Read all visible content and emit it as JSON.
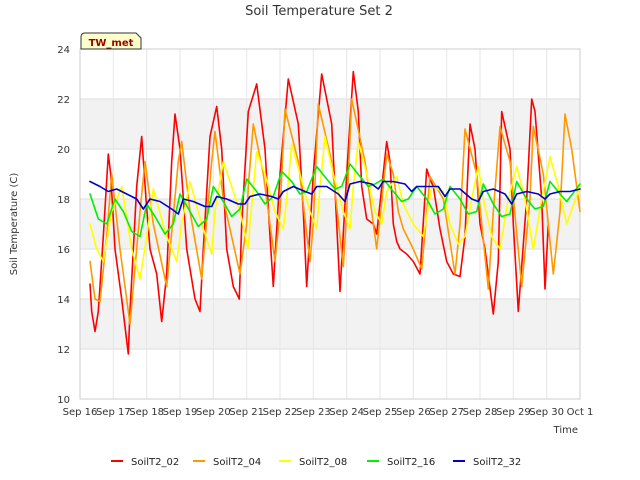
{
  "chart_data": {
    "type": "line",
    "title": "Soil Temperature Set 2",
    "xlabel": "Time",
    "ylabel": "Soil Temperature (C)",
    "badge": "TW_met",
    "ylim": [
      10,
      24
    ],
    "xlim": [
      0,
      15
    ],
    "yticks": [
      "10",
      "12",
      "14",
      "16",
      "18",
      "20",
      "22",
      "24"
    ],
    "xticks": [
      "Sep 16",
      "Sep 17",
      "Sep 18",
      "Sep 19",
      "Sep 20",
      "Sep 21",
      "Sep 22",
      "Sep 23",
      "Sep 24",
      "Sep 25",
      "Sep 26",
      "Sep 27",
      "Sep 28",
      "Sep 29",
      "Sep 30",
      "Oct 1"
    ],
    "grid": true,
    "legend_position": "bottom",
    "series": [
      {
        "name": "SoilT2_02",
        "color": "#ff0000",
        "x": [
          0.3,
          0.35,
          0.45,
          0.55,
          0.7,
          0.85,
          0.92,
          1.05,
          1.25,
          1.45,
          1.5,
          1.7,
          1.85,
          1.98,
          2.1,
          2.3,
          2.45,
          2.6,
          2.75,
          2.85,
          3.0,
          3.2,
          3.45,
          3.6,
          3.7,
          3.9,
          4.1,
          4.25,
          4.4,
          4.6,
          4.78,
          4.85,
          5.05,
          5.3,
          5.55,
          5.7,
          5.8,
          6.0,
          6.25,
          6.55,
          6.7,
          6.8,
          7.0,
          7.25,
          7.55,
          7.7,
          7.8,
          8.0,
          8.2,
          8.35,
          8.45,
          8.6,
          8.8,
          8.9,
          9.2,
          9.3,
          9.4,
          9.5,
          9.6,
          9.8,
          10.0,
          10.2,
          10.4,
          10.5,
          10.6,
          10.8,
          11.0,
          11.2,
          11.4,
          11.55,
          11.7,
          11.85,
          12.0,
          12.15,
          12.4,
          12.55,
          12.65,
          12.9,
          13.0,
          13.15,
          13.4,
          13.55,
          13.65,
          13.85,
          13.95,
          14.05
        ],
        "y": [
          14.6,
          13.5,
          12.7,
          13.5,
          16.5,
          19.8,
          19.0,
          16.0,
          14.0,
          11.8,
          13.5,
          18.5,
          20.5,
          18.0,
          16.0,
          15.0,
          13.1,
          15.0,
          19.5,
          21.4,
          20.0,
          16.0,
          14.0,
          13.5,
          16.0,
          20.5,
          21.7,
          20.0,
          16.0,
          14.5,
          14.0,
          17.0,
          21.5,
          22.6,
          20.0,
          16.5,
          14.5,
          19.0,
          22.8,
          21.0,
          17.5,
          14.5,
          19.0,
          23.0,
          21.0,
          17.0,
          14.3,
          19.0,
          23.1,
          21.5,
          18.5,
          17.2,
          17.0,
          16.6,
          20.3,
          19.5,
          17.0,
          16.3,
          16.0,
          15.8,
          15.5,
          15.0,
          19.2,
          18.8,
          18.5,
          16.8,
          15.5,
          15.0,
          14.9,
          16.5,
          21.0,
          20.0,
          17.0,
          16.0,
          13.4,
          15.5,
          21.5,
          20.0,
          17.0,
          13.5,
          18.0,
          22.0,
          21.5,
          18.0,
          14.4,
          17.0
        ]
      },
      {
        "name": "SoilT2_04",
        "color": "#ff9900",
        "x": [
          0.3,
          0.45,
          0.6,
          0.8,
          0.95,
          1.2,
          1.5,
          1.8,
          1.95,
          2.2,
          2.6,
          2.95,
          3.05,
          3.3,
          3.65,
          3.95,
          4.05,
          4.3,
          4.8,
          5.0,
          5.05,
          5.2,
          5.5,
          5.85,
          6.0,
          6.15,
          6.55,
          6.9,
          7.0,
          7.15,
          7.55,
          7.9,
          8.0,
          8.15,
          8.55,
          8.9,
          9.2,
          9.4,
          9.55,
          9.7,
          10.0,
          10.25,
          10.5,
          10.9,
          11.25,
          11.4,
          11.55,
          11.9,
          12.25,
          12.4,
          12.6,
          12.9,
          13.25,
          13.5,
          13.6,
          13.9,
          14.2,
          14.4,
          14.55,
          14.75,
          15.0
        ],
        "y": [
          15.5,
          14.0,
          13.9,
          16.5,
          19.0,
          16.0,
          13.0,
          17.5,
          19.5,
          17.0,
          14.5,
          19.5,
          20.3,
          17.5,
          14.8,
          19.5,
          20.7,
          18.0,
          15.0,
          17.0,
          18.5,
          21.0,
          19.0,
          15.5,
          17.5,
          21.6,
          19.5,
          15.5,
          17.0,
          21.8,
          19.5,
          15.3,
          17.5,
          22.0,
          19.5,
          16.0,
          19.8,
          19.0,
          17.5,
          16.8,
          16.0,
          15.2,
          18.9,
          18.0,
          15.0,
          17.0,
          20.8,
          19.0,
          14.4,
          17.5,
          20.9,
          19.5,
          14.5,
          18.0,
          20.9,
          19.0,
          15.0,
          17.5,
          21.4,
          20.0,
          17.5
        ]
      },
      {
        "name": "SoilT2_08",
        "color": "#ffff00",
        "x": [
          0.3,
          0.5,
          0.7,
          0.95,
          1.25,
          1.55,
          1.8,
          2.0,
          2.2,
          2.6,
          2.9,
          3.05,
          3.3,
          3.65,
          3.95,
          4.05,
          4.3,
          4.8,
          5.05,
          5.1,
          5.3,
          5.55,
          5.85,
          6.1,
          6.2,
          6.35,
          6.6,
          6.9,
          7.1,
          7.2,
          7.35,
          7.6,
          7.9,
          8.1,
          8.2,
          8.35,
          8.6,
          8.85,
          9.05,
          9.2,
          9.5,
          9.7,
          10.0,
          10.3,
          10.55,
          10.9,
          11.1,
          11.35,
          11.55,
          11.75,
          11.95,
          12.1,
          12.35,
          12.6,
          12.85,
          13.1,
          13.35,
          13.6,
          13.85,
          14.1,
          14.35,
          14.6,
          15.0
        ],
        "y": [
          17.0,
          16.0,
          15.5,
          17.5,
          18.5,
          16.0,
          14.8,
          16.5,
          18.4,
          16.5,
          15.5,
          17.0,
          18.7,
          17.0,
          15.8,
          17.5,
          19.5,
          17.5,
          16.0,
          17.0,
          19.9,
          19.0,
          17.5,
          16.8,
          18.0,
          20.2,
          19.0,
          17.5,
          16.8,
          18.5,
          20.5,
          19.0,
          17.5,
          16.8,
          18.5,
          20.3,
          19.0,
          17.5,
          17.0,
          18.3,
          18.9,
          17.8,
          17.0,
          16.5,
          18.5,
          18.3,
          17.0,
          16.2,
          16.5,
          18.0,
          19.3,
          18.0,
          16.5,
          16.0,
          18.0,
          19.3,
          18.0,
          16.0,
          18.0,
          19.7,
          18.5,
          17.0,
          18.5
        ]
      },
      {
        "name": "SoilT2_16",
        "color": "#00ee00",
        "x": [
          0.3,
          0.55,
          0.8,
          1.05,
          1.3,
          1.55,
          1.8,
          2.0,
          2.25,
          2.55,
          2.8,
          3.0,
          3.3,
          3.55,
          3.8,
          4.0,
          4.3,
          4.55,
          4.8,
          5.0,
          5.3,
          5.55,
          5.8,
          6.05,
          6.35,
          6.6,
          6.8,
          7.1,
          7.4,
          7.65,
          7.85,
          8.1,
          8.4,
          8.65,
          8.85,
          9.1,
          9.4,
          9.65,
          9.85,
          10.1,
          10.4,
          10.65,
          10.9,
          11.1,
          11.4,
          11.65,
          11.9,
          12.1,
          12.4,
          12.65,
          12.9,
          13.1,
          13.4,
          13.65,
          13.9,
          14.1,
          14.4,
          14.6,
          15.0
        ],
        "y": [
          18.2,
          17.2,
          17.0,
          18.0,
          17.5,
          16.7,
          16.5,
          17.8,
          17.3,
          16.6,
          17.0,
          18.2,
          17.5,
          16.9,
          17.2,
          18.5,
          17.9,
          17.3,
          17.6,
          18.8,
          18.3,
          17.8,
          18.1,
          19.1,
          18.7,
          18.2,
          18.3,
          19.3,
          18.8,
          18.4,
          18.5,
          19.4,
          18.9,
          18.5,
          18.6,
          18.8,
          18.3,
          17.9,
          18.0,
          18.5,
          18.0,
          17.4,
          17.6,
          18.5,
          18.0,
          17.4,
          17.5,
          18.6,
          17.8,
          17.3,
          17.4,
          18.7,
          18.0,
          17.6,
          17.7,
          18.7,
          18.2,
          17.9,
          18.6
        ]
      },
      {
        "name": "SoilT2_32",
        "color": "#0000cc",
        "x": [
          0.3,
          0.6,
          0.85,
          1.1,
          1.4,
          1.7,
          1.9,
          2.1,
          2.4,
          2.75,
          2.95,
          3.1,
          3.4,
          3.75,
          3.95,
          4.1,
          4.4,
          4.75,
          4.95,
          5.1,
          5.4,
          5.75,
          5.95,
          6.1,
          6.4,
          6.75,
          6.95,
          7.1,
          7.4,
          7.75,
          7.95,
          8.1,
          8.4,
          8.75,
          8.95,
          9.1,
          9.4,
          9.75,
          9.95,
          10.1,
          10.4,
          10.75,
          10.95,
          11.1,
          11.4,
          11.75,
          11.95,
          12.1,
          12.4,
          12.75,
          12.95,
          13.1,
          13.4,
          13.75,
          13.95,
          14.1,
          14.4,
          14.7,
          15.0
        ],
        "y": [
          18.7,
          18.5,
          18.3,
          18.4,
          18.2,
          18.0,
          17.6,
          18.0,
          17.9,
          17.6,
          17.4,
          18.0,
          17.9,
          17.7,
          17.7,
          18.1,
          18.0,
          17.8,
          17.8,
          18.1,
          18.2,
          18.1,
          18.0,
          18.3,
          18.5,
          18.3,
          18.2,
          18.5,
          18.5,
          18.2,
          17.9,
          18.6,
          18.7,
          18.6,
          18.4,
          18.7,
          18.7,
          18.6,
          18.3,
          18.5,
          18.5,
          18.5,
          18.1,
          18.4,
          18.4,
          18.0,
          17.9,
          18.3,
          18.4,
          18.2,
          17.8,
          18.2,
          18.3,
          18.2,
          18.0,
          18.2,
          18.3,
          18.3,
          18.4
        ]
      }
    ]
  }
}
